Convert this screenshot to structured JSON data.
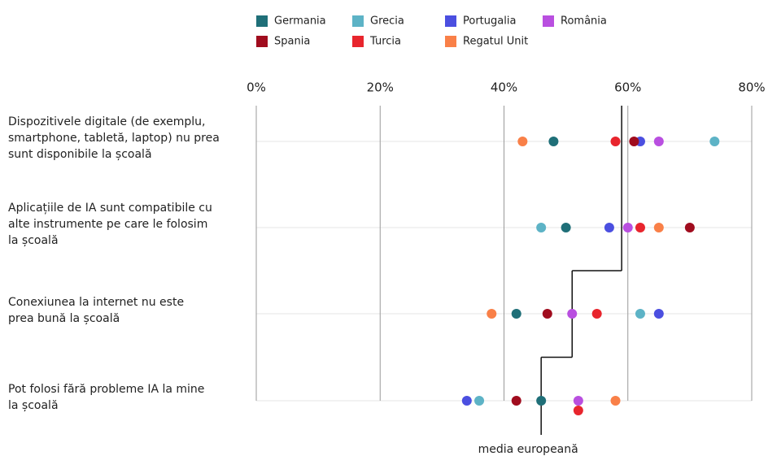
{
  "chart_data": {
    "type": "dot",
    "categories": [
      "Dispozitivele digitale (de exemplu,\nsmartphone, tabletă, laptop) nu prea\nsunt disponibile la școală",
      "Aplicațiile de IA sunt compatibile cu\nalte instrumente pe care le folosim\nla școală",
      "Conexiunea la internet nu este\n prea bună la școală",
      "Pot folosi fără probleme IA la mine\nla școală"
    ],
    "series": [
      {
        "name": "Germania",
        "color": "#1f6f78",
        "values": [
          48,
          50,
          42,
          46
        ]
      },
      {
        "name": "Grecia",
        "color": "#5db3c6",
        "values": [
          74,
          46,
          62,
          36
        ]
      },
      {
        "name": "Portugalia",
        "color": "#4b4fe0",
        "values": [
          62,
          57,
          65,
          34
        ]
      },
      {
        "name": "România",
        "color": "#b94fe0",
        "values": [
          65,
          60,
          51,
          52
        ]
      },
      {
        "name": "Spania",
        "color": "#a00c1e",
        "values": [
          61,
          70,
          47,
          42
        ]
      },
      {
        "name": "Turcia",
        "color": "#e8252d",
        "values": [
          58,
          62,
          55,
          52
        ]
      },
      {
        "name": "Regatul Unit",
        "color": "#f98048",
        "values": [
          43,
          65,
          38,
          58
        ]
      }
    ],
    "average": {
      "name": "media europeană",
      "values": [
        59,
        59,
        51,
        46
      ]
    },
    "xlim": [
      0,
      80
    ],
    "xticks": [
      {
        "value": 0,
        "label": "0%"
      },
      {
        "value": 20,
        "label": "20%"
      },
      {
        "value": 40,
        "label": "40%"
      },
      {
        "value": 60,
        "label": "60%"
      },
      {
        "value": 80,
        "label": "80%"
      }
    ],
    "grid": true
  }
}
